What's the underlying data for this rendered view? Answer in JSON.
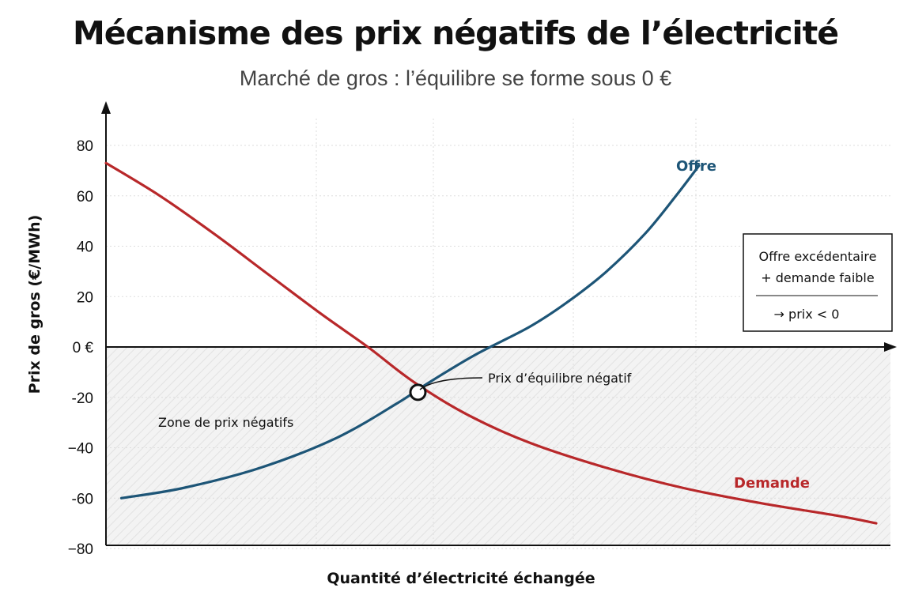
{
  "title": "Mécanisme des prix négatifs de l’électricité",
  "subtitle": "Marché de gros : l’équilibre se forme sous 0 €",
  "colors": {
    "offre": "#1d5577",
    "demande": "#b8282a",
    "axis": "#111111",
    "grid": "#dddddd"
  },
  "chart_data": {
    "type": "line",
    "title": "Mécanisme des prix négatifs de l’électricité",
    "subtitle": "Marché de gros : l’équilibre se forme sous 0 €",
    "xlabel": "Quantité d’électricité échangée",
    "ylabel": "Prix de gros (€/MWh)",
    "ylim": [
      -80,
      90
    ],
    "y_ticks": [
      "80",
      "60",
      "40",
      "20",
      "0 €",
      "-20",
      "−40",
      "-60",
      "−80"
    ],
    "y_tick_values": [
      80,
      60,
      40,
      20,
      0,
      -20,
      -40,
      -60,
      -80
    ],
    "grid": true,
    "series": [
      {
        "name": "Offre",
        "color": "#1d5577",
        "x": [
          2,
          10,
          20,
          30,
          38,
          42,
          48,
          55,
          60,
          65,
          70,
          74,
          77
        ],
        "y": [
          -60,
          -56,
          -48,
          -36,
          -22,
          -14,
          -3,
          8,
          18,
          30,
          45,
          60,
          72
        ]
      },
      {
        "name": "Demande",
        "color": "#b8282a",
        "x": [
          0,
          7,
          14,
          21,
          28,
          34,
          40,
          47,
          55,
          65,
          75,
          85,
          95,
          100
        ],
        "y": [
          73,
          60,
          45,
          29,
          13,
          0,
          -14,
          -27,
          -38,
          -48,
          -56,
          -62,
          -67,
          -70
        ]
      }
    ],
    "equilibrium": {
      "x": 40.5,
      "y": -18,
      "label": "Prix d’équilibre négatif"
    },
    "annotations": {
      "zone": "Zone de prix négatifs"
    },
    "note": {
      "line1": "Offre excédentaire",
      "line2": "+ demande faible",
      "line3": "→ prix < 0"
    }
  }
}
